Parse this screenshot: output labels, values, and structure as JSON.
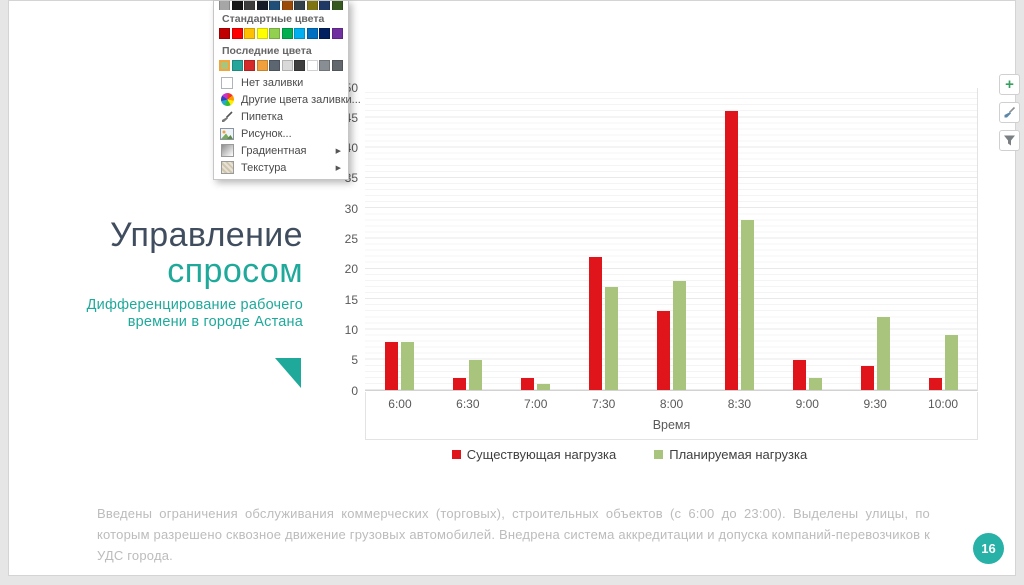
{
  "menu": {
    "theme_variant_colors": [
      "#a6a6a6",
      "#171717",
      "#3d3d3d",
      "#161d26",
      "#1f4e79",
      "#9c4a08",
      "#33414b",
      "#7e7413",
      "#203864",
      "#36591f"
    ],
    "standard_section_label": "Стандартные цвета",
    "standard_colors": [
      "#c00000",
      "#ff0000",
      "#ffc000",
      "#ffff00",
      "#92d050",
      "#00b050",
      "#00b0f0",
      "#0070c0",
      "#002060",
      "#7030a0"
    ],
    "recent_section_label": "Последние цвета",
    "recent_colors": [
      "#a9c47c",
      "#26a69a",
      "#d62a2a",
      "#f0a03c",
      "#5b6670",
      "#d9d9d9",
      "#3f3f3f",
      "#ffffff",
      "#888e94",
      "#62686e"
    ],
    "recent_selected_index": 0,
    "items": [
      {
        "label": "Нет заливки",
        "icon": "no-fill-icon"
      },
      {
        "label": "Другие цвета заливки...",
        "icon": "color-wheel-icon"
      },
      {
        "label": "Пипетка",
        "icon": "eyedropper-icon"
      },
      {
        "label": "Рисунок...",
        "icon": "picture-icon"
      },
      {
        "label": "Градиентная",
        "icon": "gradient-icon",
        "submenu": "▶"
      },
      {
        "label": "Текстура",
        "icon": "texture-icon",
        "submenu": "▶"
      }
    ]
  },
  "slide": {
    "title_line1": "Управление",
    "title_line2": "спросом",
    "subtitle": "Дифференцирование рабочего времени в городе Астана",
    "body_text": "Введены ограничения обслуживания коммерческих (торговых), строительных объектов (с 6:00 до 23:00). Выделены улицы, по которым разрешено сквозное движение грузовых автомобилей. Внедрена система аккредитации и допуска компаний-перевозчиков к УДС города.",
    "page_number": "16",
    "accent_teal": "#1fa99b",
    "title_dark": "#3f4d5e"
  },
  "chart_data": {
    "type": "bar",
    "categories": [
      "6:00",
      "6:30",
      "7:00",
      "7:30",
      "8:00",
      "8:30",
      "9:00",
      "9:30",
      "10:00"
    ],
    "series": [
      {
        "name": "Существующая нагрузка",
        "color": "#e0151b",
        "values": [
          8,
          2,
          2,
          22,
          13,
          46,
          5,
          4,
          2
        ]
      },
      {
        "name": "Планируемая нагрузка",
        "color": "#a9c47c",
        "values": [
          8,
          5,
          1,
          17,
          18,
          28,
          2,
          12,
          9
        ]
      }
    ],
    "title": "",
    "xlabel": "Время",
    "ylabel": "",
    "ylim": [
      0,
      50
    ],
    "ytick_step": 5,
    "yticks": [
      0,
      5,
      10,
      15,
      20,
      25,
      30,
      35,
      40,
      45,
      50
    ],
    "grid": "horizontal-minor-and-major",
    "legend_position": "bottom"
  },
  "side_buttons": [
    {
      "name": "chart-elements",
      "icon": "plus-icon",
      "glyph": "+"
    },
    {
      "name": "chart-styles",
      "icon": "brush-icon"
    },
    {
      "name": "chart-filters",
      "icon": "funnel-icon"
    }
  ]
}
